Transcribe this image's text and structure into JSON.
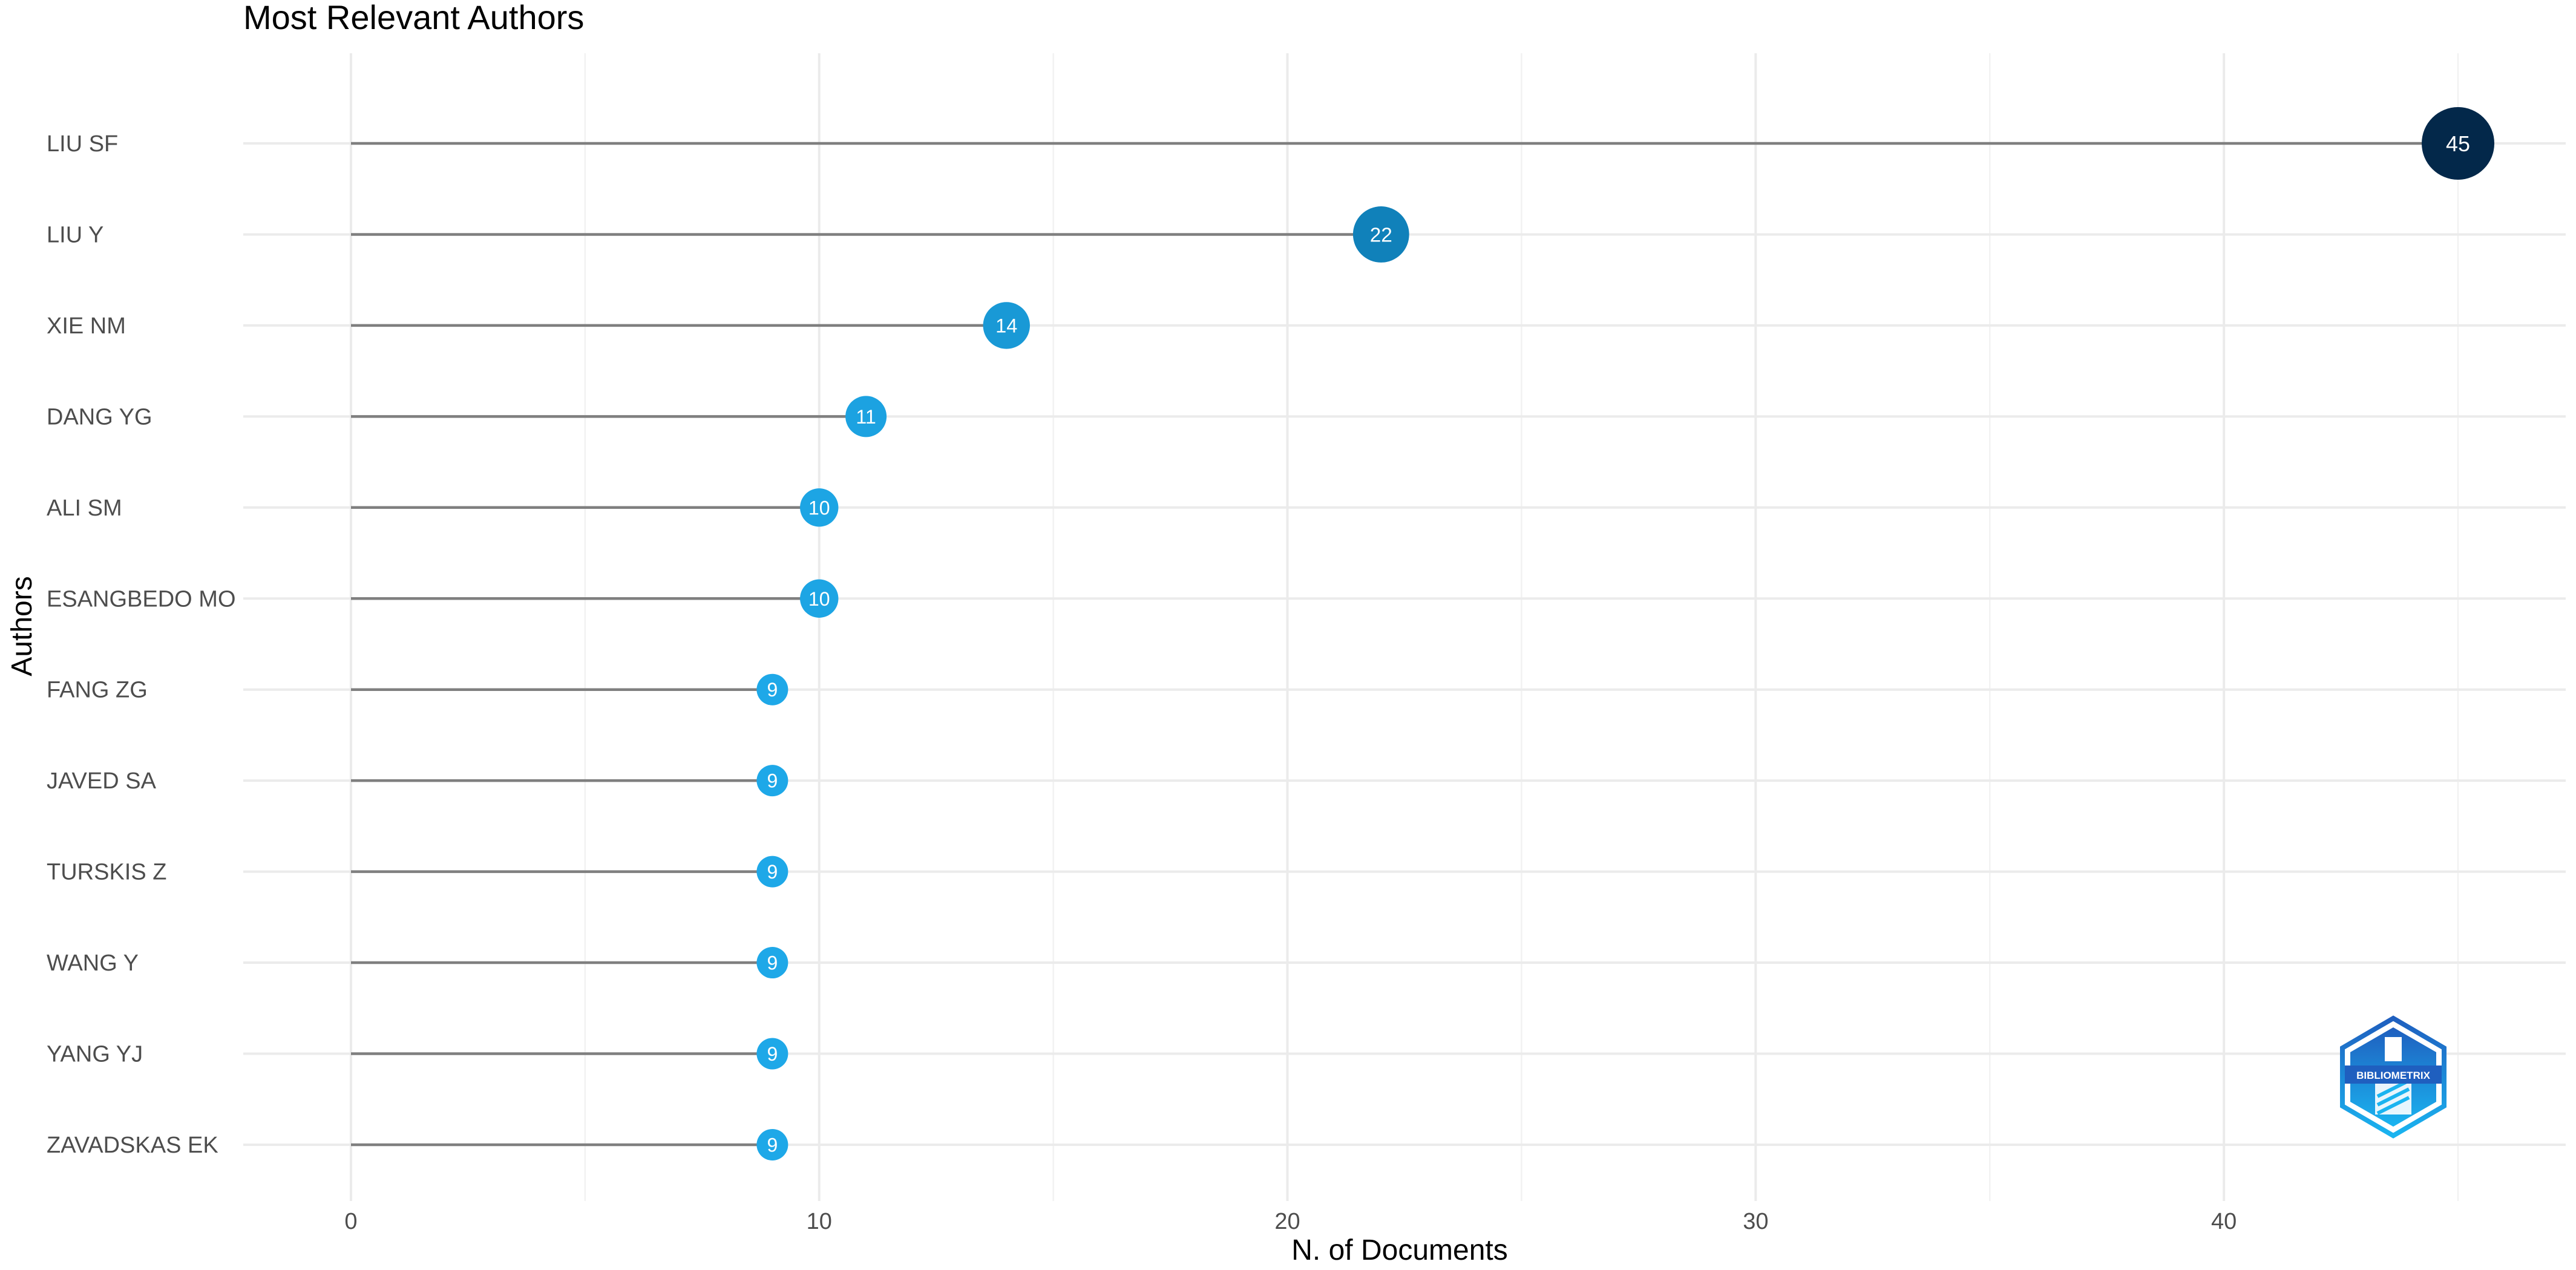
{
  "chart_data": {
    "type": "lollipop",
    "title": "Most Relevant Authors",
    "xlabel": "N. of Documents",
    "ylabel": "Authors",
    "xlim": [
      -2.3,
      47.3
    ],
    "x_ticks": [
      0,
      10,
      20,
      30,
      40
    ],
    "grid": true,
    "categories": [
      "LIU SF",
      "LIU Y",
      "XIE NM",
      "DANG YG",
      "ALI SM",
      "ESANGBEDO MO",
      "FANG ZG",
      "JAVED SA",
      "TURSKIS Z",
      "WANG Y",
      "YANG YJ",
      "ZAVADSKAS EK"
    ],
    "values": [
      45,
      22,
      14,
      11,
      10,
      10,
      9,
      9,
      9,
      9,
      9,
      9
    ],
    "colors": {
      "stem": "#7f7f7f",
      "point_low": "#1ea8e8",
      "point_mid": "#0b72a8",
      "point_high": "#03284a"
    }
  },
  "logo": {
    "text": "BIBLIOMETRIX",
    "colors": [
      "#1f5fbf",
      "#1ab4f0"
    ]
  }
}
